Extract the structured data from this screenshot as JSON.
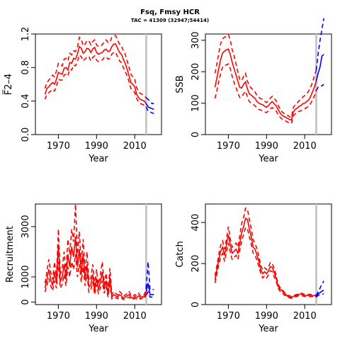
{
  "title": "Fsq, Fmsy HCR",
  "subtitle": "TAC = 41309 (32947;54414)",
  "colors": {
    "historic": "#ff0000",
    "projection": "#0000ff",
    "divider": "#c8c8c8",
    "axis": "#000000"
  },
  "chart_data": [
    {
      "type": "line",
      "panel": "top-left",
      "xlabel": "Year",
      "ylabel": "F̅2–4",
      "xlim": [
        1958,
        2024
      ],
      "ylim": [
        0,
        1.2
      ],
      "xticks": [
        1970,
        1990,
        2010
      ],
      "yticks": [
        0.0,
        0.4,
        0.8,
        1.2
      ],
      "ytick_labels": [
        "0.0",
        "0.4",
        "0.8",
        "1.2"
      ],
      "divider_x": 2016,
      "historic": {
        "x": [
          1963,
          1964,
          1965,
          1966,
          1967,
          1968,
          1969,
          1970,
          1971,
          1972,
          1973,
          1974,
          1975,
          1976,
          1977,
          1978,
          1979,
          1980,
          1981,
          1982,
          1983,
          1984,
          1985,
          1986,
          1987,
          1988,
          1989,
          1990,
          1991,
          1992,
          1993,
          1994,
          1995,
          1996,
          1997,
          1998,
          1999,
          2000,
          2001,
          2002,
          2003,
          2004,
          2005,
          2006,
          2007,
          2008,
          2009,
          2010,
          2011,
          2012,
          2013,
          2014,
          2015,
          2016
        ],
        "mid": [
          0.48,
          0.55,
          0.57,
          0.6,
          0.62,
          0.6,
          0.66,
          0.74,
          0.73,
          0.72,
          0.79,
          0.8,
          0.77,
          0.86,
          0.85,
          0.91,
          0.9,
          0.96,
          1.05,
          1.03,
          0.97,
          0.99,
          1.03,
          1.02,
          0.98,
          1.02,
          1.04,
          0.98,
          0.96,
          0.97,
          0.98,
          1.01,
          1.02,
          0.99,
          1.0,
          1.05,
          1.08,
          1.08,
          1.03,
          0.98,
          0.96,
          0.9,
          0.85,
          0.78,
          0.7,
          0.62,
          0.6,
          0.57,
          0.48,
          0.44,
          0.42,
          0.41,
          0.4,
          0.37
        ],
        "lower": [
          0.42,
          0.48,
          0.5,
          0.52,
          0.54,
          0.52,
          0.58,
          0.66,
          0.65,
          0.65,
          0.71,
          0.72,
          0.7,
          0.78,
          0.77,
          0.83,
          0.82,
          0.87,
          0.95,
          0.93,
          0.88,
          0.9,
          0.93,
          0.93,
          0.88,
          0.92,
          0.94,
          0.89,
          0.87,
          0.88,
          0.89,
          0.92,
          0.93,
          0.9,
          0.91,
          0.96,
          0.98,
          0.98,
          0.93,
          0.88,
          0.86,
          0.8,
          0.75,
          0.7,
          0.63,
          0.55,
          0.53,
          0.5,
          0.43,
          0.39,
          0.37,
          0.36,
          0.35,
          0.33
        ],
        "upper": [
          0.55,
          0.62,
          0.65,
          0.68,
          0.71,
          0.69,
          0.76,
          0.85,
          0.84,
          0.82,
          0.9,
          0.91,
          0.88,
          0.97,
          0.95,
          1.0,
          0.99,
          1.04,
          1.16,
          1.14,
          1.06,
          1.08,
          1.12,
          1.12,
          1.07,
          1.11,
          1.13,
          1.07,
          1.05,
          1.06,
          1.07,
          1.11,
          1.13,
          1.1,
          1.1,
          1.16,
          1.18,
          1.18,
          1.13,
          1.08,
          1.06,
          1.0,
          0.96,
          0.88,
          0.8,
          0.72,
          0.69,
          0.66,
          0.56,
          0.51,
          0.49,
          0.48,
          0.46,
          0.44
        ]
      },
      "projection": {
        "x": [
          2016,
          2017,
          2018,
          2019,
          2020
        ],
        "mid": [
          0.37,
          0.33,
          0.32,
          0.31,
          0.3
        ],
        "lower": [
          0.33,
          0.28,
          0.27,
          0.26,
          0.25
        ],
        "upper": [
          0.44,
          0.42,
          0.4,
          0.37,
          0.37
        ]
      }
    },
    {
      "type": "line",
      "panel": "top-right",
      "xlabel": "Year",
      "ylabel": "SSB",
      "xlim": [
        1958,
        2024
      ],
      "ylim": [
        0,
        320
      ],
      "xticks": [
        1970,
        1990,
        2010
      ],
      "yticks": [
        0,
        100,
        200,
        300
      ],
      "ytick_labels": [
        "0",
        "100",
        "200",
        "300"
      ],
      "divider_x": 2016,
      "historic": {
        "x": [
          1963,
          1964,
          1965,
          1966,
          1967,
          1968,
          1969,
          1970,
          1971,
          1972,
          1973,
          1974,
          1975,
          1976,
          1977,
          1978,
          1979,
          1980,
          1981,
          1982,
          1983,
          1984,
          1985,
          1986,
          1987,
          1988,
          1989,
          1990,
          1991,
          1992,
          1993,
          1994,
          1995,
          1996,
          1997,
          1998,
          1999,
          2000,
          2001,
          2002,
          2003,
          2004,
          2005,
          2006,
          2007,
          2008,
          2009,
          2010,
          2011,
          2012,
          2013,
          2014,
          2015,
          2016
        ],
        "mid": [
          150,
          180,
          210,
          240,
          260,
          265,
          270,
          272,
          255,
          230,
          210,
          190,
          170,
          150,
          148,
          160,
          168,
          145,
          130,
          126,
          120,
          115,
          105,
          100,
          97,
          95,
          90,
          87,
          92,
          100,
          105,
          98,
          92,
          80,
          70,
          62,
          58,
          55,
          52,
          48,
          46,
          72,
          80,
          84,
          90,
          92,
          98,
          100,
          105,
          110,
          120,
          135,
          150,
          170
        ],
        "lower": [
          115,
          140,
          170,
          195,
          215,
          220,
          222,
          225,
          210,
          185,
          165,
          150,
          132,
          118,
          120,
          130,
          138,
          120,
          105,
          100,
          96,
          92,
          84,
          80,
          78,
          76,
          72,
          70,
          75,
          82,
          86,
          80,
          75,
          65,
          56,
          50,
          46,
          43,
          40,
          37,
          35,
          60,
          66,
          70,
          74,
          76,
          80,
          82,
          86,
          90,
          98,
          110,
          122,
          140
        ],
        "upper": [
          195,
          225,
          260,
          290,
          305,
          310,
          312,
          318,
          300,
          270,
          250,
          225,
          200,
          175,
          172,
          185,
          195,
          170,
          155,
          148,
          142,
          136,
          124,
          118,
          114,
          112,
          106,
          102,
          108,
          116,
          122,
          115,
          108,
          94,
          82,
          73,
          68,
          64,
          61,
          57,
          54,
          86,
          95,
          100,
          108,
          112,
          120,
          124,
          130,
          138,
          150,
          165,
          185,
          205
        ]
      },
      "projection": {
        "x": [
          2016,
          2017,
          2018,
          2019,
          2020
        ],
        "mid": [
          170,
          195,
          215,
          250,
          255
        ],
        "lower": [
          140,
          150,
          155,
          155,
          160
        ],
        "upper": [
          205,
          255,
          300,
          335,
          370
        ]
      }
    },
    {
      "type": "line",
      "panel": "bottom-left",
      "xlabel": "Year",
      "ylabel": "Recruitment",
      "xlim": [
        1958,
        2024
      ],
      "ylim": [
        -100,
        3900
      ],
      "xticks": [
        1970,
        1990,
        2010
      ],
      "yticks": [
        0,
        1000,
        3000
      ],
      "ytick_labels": [
        "0",
        "1000",
        "3000"
      ],
      "divider_x": 2016,
      "historic": {
        "x": [
          1963,
          1964,
          1965,
          1966,
          1967,
          1968,
          1969,
          1970,
          1971,
          1972,
          1973,
          1974,
          1975,
          1976,
          1977,
          1978,
          1979,
          1980,
          1981,
          1982,
          1983,
          1984,
          1985,
          1986,
          1987,
          1988,
          1989,
          1990,
          1991,
          1992,
          1993,
          1994,
          1995,
          1996,
          1997,
          1998,
          1999,
          2000,
          2001,
          2002,
          2003,
          2004,
          2005,
          2006,
          2007,
          2008,
          2009,
          2010,
          2011,
          2012,
          2013,
          2014,
          2015,
          2016
        ],
        "mid": [
          550,
          900,
          1300,
          900,
          650,
          1200,
          750,
          2300,
          800,
          1000,
          1500,
          900,
          1900,
          1400,
          2200,
          1800,
          2600,
          1400,
          2100,
          1100,
          1900,
          900,
          1500,
          600,
          700,
          1100,
          450,
          950,
          500,
          800,
          1200,
          500,
          850,
          300,
          1000,
          200,
          300,
          250,
          200,
          300,
          250,
          150,
          200,
          250,
          300,
          200,
          150,
          220,
          180,
          250,
          180,
          220,
          200,
          400
        ],
        "lower": [
          400,
          650,
          950,
          650,
          450,
          850,
          550,
          1600,
          550,
          700,
          1100,
          650,
          1400,
          1000,
          1600,
          1300,
          1900,
          1000,
          1500,
          800,
          1400,
          650,
          1100,
          400,
          500,
          800,
          300,
          700,
          350,
          550,
          850,
          350,
          600,
          200,
          700,
          130,
          200,
          170,
          130,
          200,
          170,
          100,
          130,
          170,
          200,
          130,
          100,
          150,
          120,
          170,
          120,
          150,
          130,
          280
        ],
        "upper": [
          750,
          1200,
          1700,
          1200,
          900,
          1600,
          1000,
          2900,
          1100,
          1350,
          2000,
          1200,
          2500,
          1900,
          2900,
          2400,
          3900,
          1900,
          2800,
          1500,
          2500,
          1200,
          2000,
          850,
          950,
          1500,
          650,
          1300,
          700,
          1100,
          1600,
          700,
          1150,
          450,
          1350,
          300,
          420,
          350,
          280,
          420,
          350,
          220,
          280,
          350,
          420,
          280,
          220,
          300,
          250,
          350,
          250,
          300,
          280,
          560
        ]
      },
      "projection": {
        "x": [
          2016,
          2017,
          2018,
          2019,
          2020
        ],
        "mid": [
          400,
          750,
          300,
          300,
          300
        ],
        "lower": [
          280,
          400,
          200,
          200,
          200
        ],
        "upper": [
          560,
          1600,
          500,
          500,
          500
        ]
      }
    },
    {
      "type": "line",
      "panel": "bottom-right",
      "xlabel": "Year",
      "ylabel": "Catch",
      "xlim": [
        1958,
        2024
      ],
      "ylim": [
        0,
        490
      ],
      "xticks": [
        1970,
        1990,
        2010
      ],
      "yticks": [
        0,
        200,
        400
      ],
      "ytick_labels": [
        "0",
        "200",
        "400"
      ],
      "divider_x": 2016,
      "historic": {
        "x": [
          1963,
          1964,
          1965,
          1966,
          1967,
          1968,
          1969,
          1970,
          1971,
          1972,
          1973,
          1974,
          1975,
          1976,
          1977,
          1978,
          1979,
          1980,
          1981,
          1982,
          1983,
          1984,
          1985,
          1986,
          1987,
          1988,
          1989,
          1990,
          1991,
          1992,
          1993,
          1994,
          1995,
          1996,
          1997,
          1998,
          1999,
          2000,
          2001,
          2002,
          2003,
          2004,
          2005,
          2006,
          2007,
          2008,
          2009,
          2010,
          2011,
          2012,
          2013,
          2014,
          2015,
          2016
        ],
        "mid": [
          120,
          170,
          220,
          260,
          280,
          240,
          290,
          340,
          290,
          250,
          260,
          270,
          250,
          300,
          350,
          380,
          420,
          415,
          370,
          330,
          280,
          270,
          240,
          210,
          170,
          150,
          160,
          150,
          165,
          185,
          180,
          155,
          130,
          90,
          75,
          70,
          55,
          50,
          40,
          38,
          35,
          40,
          42,
          45,
          50,
          50,
          48,
          45,
          44,
          45,
          45,
          44,
          43,
          40
        ],
        "lower": [
          105,
          150,
          195,
          230,
          250,
          210,
          255,
          300,
          255,
          220,
          230,
          240,
          220,
          265,
          310,
          340,
          375,
          370,
          330,
          295,
          250,
          240,
          215,
          185,
          150,
          130,
          140,
          130,
          145,
          165,
          160,
          135,
          115,
          80,
          66,
          60,
          48,
          44,
          35,
          33,
          30,
          35,
          37,
          40,
          44,
          44,
          42,
          40,
          39,
          40,
          40,
          39,
          38,
          36
        ],
        "upper": [
          140,
          190,
          245,
          290,
          310,
          270,
          320,
          380,
          320,
          280,
          290,
          300,
          280,
          335,
          395,
          425,
          470,
          465,
          415,
          370,
          315,
          300,
          270,
          235,
          190,
          170,
          180,
          170,
          185,
          205,
          200,
          175,
          145,
          100,
          84,
          78,
          62,
          56,
          46,
          43,
          40,
          45,
          47,
          50,
          56,
          56,
          53,
          50,
          49,
          50,
          50,
          49,
          48,
          44
        ]
      },
      "projection": {
        "x": [
          2016,
          2017,
          2018,
          2019,
          2020
        ],
        "mid": [
          40,
          52,
          58,
          65,
          70
        ],
        "lower": [
          36,
          45,
          48,
          50,
          52
        ],
        "upper": [
          44,
          62,
          80,
          100,
          115
        ]
      }
    }
  ]
}
